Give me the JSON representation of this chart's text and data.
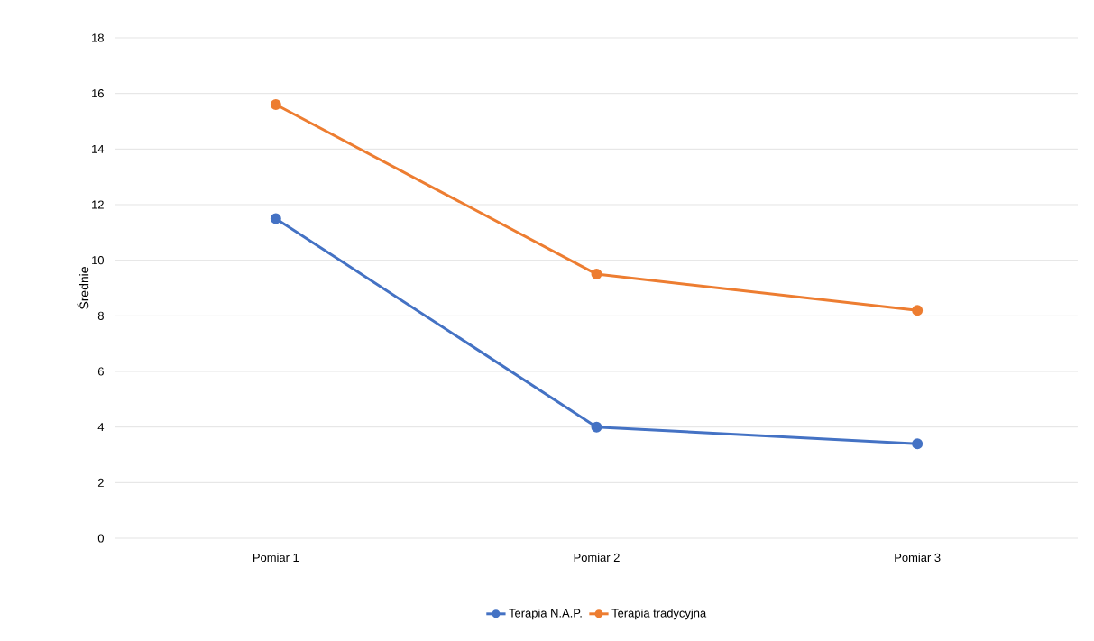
{
  "chart_data": {
    "type": "line",
    "ylabel": "Średnie",
    "categories": [
      "Pomiar 1",
      "Pomiar 2",
      "Pomiar 3"
    ],
    "series": [
      {
        "name": "Terapia N.A.P.",
        "color": "#4472c4",
        "values": [
          11.5,
          4.0,
          3.4
        ]
      },
      {
        "name": "Terapia tradycyjna",
        "color": "#ed7d31",
        "values": [
          15.6,
          9.5,
          8.2
        ]
      }
    ],
    "ylim": [
      0,
      18
    ],
    "yticks": [
      0,
      2,
      4,
      6,
      8,
      10,
      12,
      14,
      16,
      18
    ],
    "grid": "y",
    "legend": "bottom",
    "marker": "circle"
  }
}
